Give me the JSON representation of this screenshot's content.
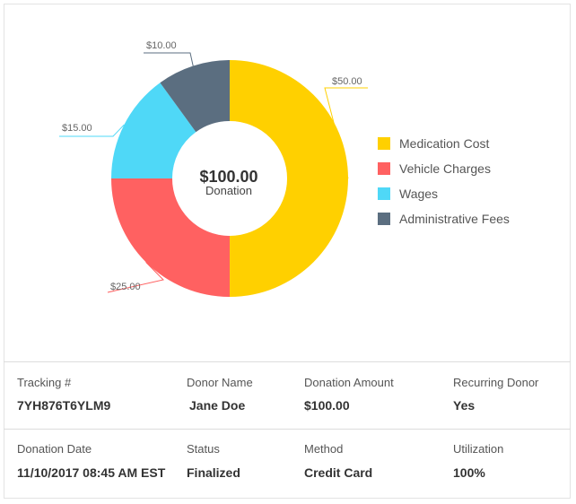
{
  "chart_data": {
    "type": "pie",
    "title": "",
    "center": {
      "amount": "$100.00",
      "label": "Donation"
    },
    "slices": [
      {
        "name": "Medication Cost",
        "value": 50,
        "label": "$50.00",
        "color": "#FFD000"
      },
      {
        "name": "Vehicle Charges",
        "value": 25,
        "label": "$25.00",
        "color": "#FF6161"
      },
      {
        "name": "Wages",
        "value": 15,
        "label": "$15.00",
        "color": "#4FD8F7"
      },
      {
        "name": "Administrative Fees",
        "value": 10,
        "label": "$10.00",
        "color": "#5B6E80"
      }
    ],
    "legend_position": "right"
  },
  "details": {
    "row1": [
      {
        "label": "Tracking #",
        "value": "7YH876T6YLM9"
      },
      {
        "label": "Donor Name",
        "value": "Jane Doe"
      },
      {
        "label": "Donation Amount",
        "value": "$100.00"
      },
      {
        "label": "Recurring Donor",
        "value": "Yes"
      }
    ],
    "row2": [
      {
        "label": "Donation Date",
        "value": "11/10/2017 08:45 AM EST"
      },
      {
        "label": "Status",
        "value": "Finalized"
      },
      {
        "label": "Method",
        "value": "Credit Card"
      },
      {
        "label": "Utilization",
        "value": "100%"
      }
    ]
  }
}
